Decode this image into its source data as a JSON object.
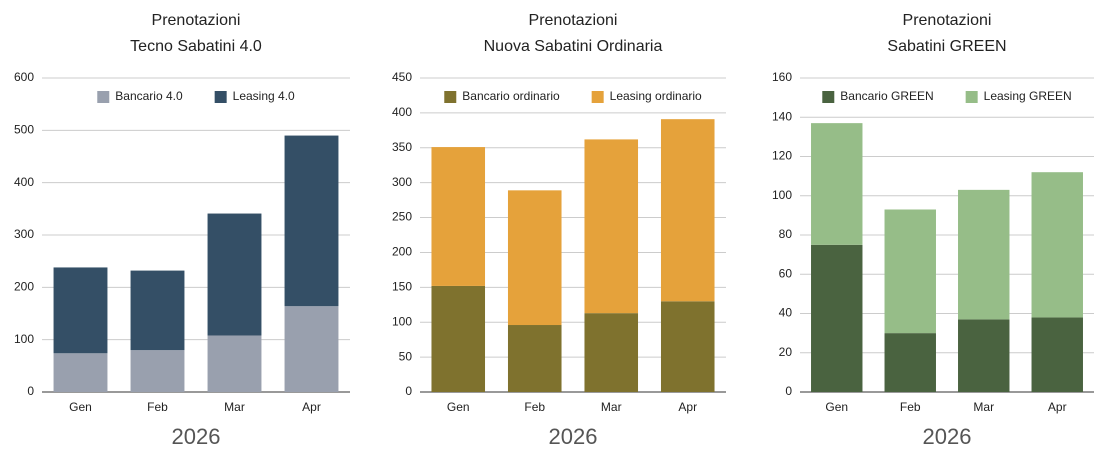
{
  "chart_data": [
    {
      "type": "bar",
      "stacked": true,
      "title": "Prenotazioni",
      "subtitle": "Tecno Sabatini 4.0",
      "x_label": "2026",
      "categories": [
        "Gen",
        "Feb",
        "Mar",
        "Apr"
      ],
      "series": [
        {
          "name": "Bancario 4.0",
          "color": "#99a0ae",
          "values": [
            74,
            80,
            108,
            164
          ]
        },
        {
          "name": "Leasing 4.0",
          "color": "#344f66",
          "values": [
            164,
            152,
            233,
            326
          ]
        }
      ],
      "ylim": [
        0,
        600
      ],
      "yticks": [
        0,
        100,
        200,
        300,
        400,
        500,
        600
      ],
      "grid": true,
      "legend": "top"
    },
    {
      "type": "bar",
      "stacked": true,
      "title": "Prenotazioni",
      "subtitle": "Nuova Sabatini Ordinaria",
      "x_label": "2026",
      "categories": [
        "Gen",
        "Feb",
        "Mar",
        "Apr"
      ],
      "series": [
        {
          "name": "Bancario ordinario",
          "color": "#7f722e",
          "values": [
            152,
            96,
            113,
            130
          ]
        },
        {
          "name": "Leasing ordinario",
          "color": "#e5a23b",
          "values": [
            199,
            193,
            249,
            261
          ]
        }
      ],
      "ylim": [
        0,
        450
      ],
      "yticks": [
        0,
        50,
        100,
        150,
        200,
        250,
        300,
        350,
        400,
        450
      ],
      "grid": true,
      "legend": "top"
    },
    {
      "type": "bar",
      "stacked": true,
      "title": "Prenotazioni",
      "subtitle": "Sabatini GREEN",
      "x_label": "2026",
      "categories": [
        "Gen",
        "Feb",
        "Mar",
        "Apr"
      ],
      "series": [
        {
          "name": "Bancario GREEN",
          "color": "#4a6340",
          "values": [
            75,
            30,
            37,
            38
          ]
        },
        {
          "name": "Leasing GREEN",
          "color": "#96bd88",
          "values": [
            62,
            63,
            66,
            74
          ]
        }
      ],
      "ylim": [
        0,
        160
      ],
      "yticks": [
        0,
        20,
        40,
        60,
        80,
        100,
        120,
        140,
        160
      ],
      "grid": true,
      "legend": "top"
    }
  ]
}
